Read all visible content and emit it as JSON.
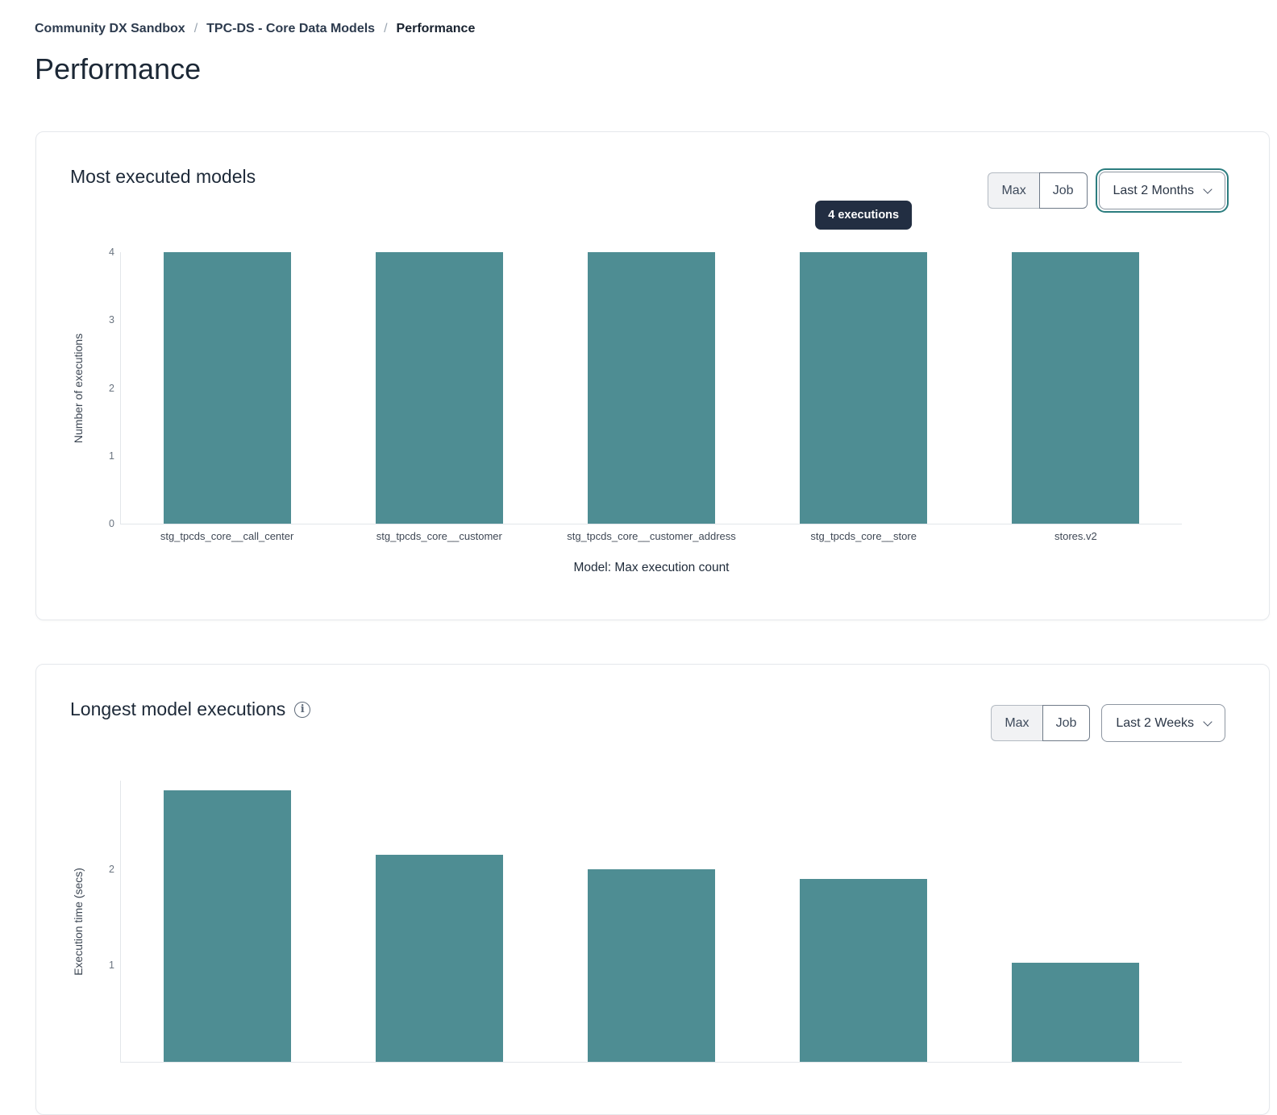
{
  "breadcrumb": {
    "separator": "/",
    "items": [
      "Community DX Sandbox",
      "TPC-DS - Core Data Models",
      "Performance"
    ]
  },
  "page_title": "Performance",
  "card1": {
    "title": "Most executed models",
    "toggle": {
      "options": [
        "Max",
        "Job"
      ],
      "selected": "Max"
    },
    "dropdown_value": "Last 2 Months",
    "dropdown_focused": true
  },
  "card2": {
    "title": "Longest model executions",
    "info_icon": "info-circle",
    "toggle": {
      "options": [
        "Max",
        "Job"
      ],
      "selected": "Max"
    },
    "dropdown_value": "Last 2 Weeks",
    "dropdown_focused": false
  },
  "colors": {
    "bar": "#4e8d93",
    "tooltip_bg": "#222e42",
    "focus_ring": "#2c7d7f"
  },
  "chart_data": [
    {
      "type": "bar",
      "title": "Most executed models",
      "categories": [
        "stg_tpcds_core__call_center",
        "stg_tpcds_core__customer",
        "stg_tpcds_core__customer_address",
        "stg_tpcds_core__store",
        "stores.v2"
      ],
      "values": [
        4,
        4,
        4,
        4,
        4
      ],
      "xlabel": "Model: Max execution count",
      "ylabel": "Number of executions",
      "ylim": [
        0,
        4
      ],
      "yticks": [
        0,
        1,
        2,
        3,
        4
      ],
      "grid": false,
      "legend": false,
      "bar_color": "#4e8d93",
      "tooltip": {
        "label": "4 executions",
        "bar_index": 3
      }
    },
    {
      "type": "bar",
      "title": "Longest model executions",
      "values": [
        2.82,
        2.15,
        2.0,
        1.9,
        1.03
      ],
      "ylabel": "Execution time (secs)",
      "ylim": [
        0,
        2.917
      ],
      "yticks": [
        1,
        2
      ],
      "grid": false,
      "legend": false,
      "bar_color": "#4e8d93",
      "clipped_below": true
    }
  ]
}
